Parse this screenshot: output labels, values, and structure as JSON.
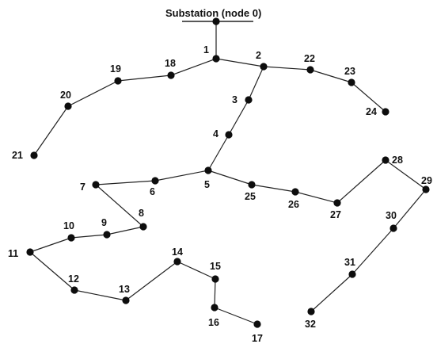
{
  "title": "Substation (node 0)",
  "colors": {
    "line": "#222222",
    "node": "#0d0d0d",
    "text": "#111111",
    "background": "#ffffff"
  },
  "nodes": [
    {
      "id": 0,
      "label": ""
    },
    {
      "id": 1,
      "label": "1"
    },
    {
      "id": 2,
      "label": "2"
    },
    {
      "id": 3,
      "label": "3"
    },
    {
      "id": 4,
      "label": "4"
    },
    {
      "id": 5,
      "label": "5"
    },
    {
      "id": 6,
      "label": "6"
    },
    {
      "id": 7,
      "label": "7"
    },
    {
      "id": 8,
      "label": "8"
    },
    {
      "id": 9,
      "label": "9"
    },
    {
      "id": 10,
      "label": "10"
    },
    {
      "id": 11,
      "label": "11"
    },
    {
      "id": 12,
      "label": "12"
    },
    {
      "id": 13,
      "label": "13"
    },
    {
      "id": 14,
      "label": "14"
    },
    {
      "id": 15,
      "label": "15"
    },
    {
      "id": 16,
      "label": "16"
    },
    {
      "id": 17,
      "label": "17"
    },
    {
      "id": 18,
      "label": "18"
    },
    {
      "id": 19,
      "label": "19"
    },
    {
      "id": 20,
      "label": "20"
    },
    {
      "id": 21,
      "label": "21"
    },
    {
      "id": 22,
      "label": "22"
    },
    {
      "id": 23,
      "label": "23"
    },
    {
      "id": 24,
      "label": "24"
    },
    {
      "id": 25,
      "label": "25"
    },
    {
      "id": 26,
      "label": "26"
    },
    {
      "id": 27,
      "label": "27"
    },
    {
      "id": 28,
      "label": "28"
    },
    {
      "id": 29,
      "label": "29"
    },
    {
      "id": 30,
      "label": "30"
    },
    {
      "id": 31,
      "label": "31"
    },
    {
      "id": 32,
      "label": "32"
    }
  ],
  "edges": [
    [
      0,
      1
    ],
    [
      1,
      2
    ],
    [
      2,
      3
    ],
    [
      3,
      4
    ],
    [
      4,
      5
    ],
    [
      5,
      6
    ],
    [
      6,
      7
    ],
    [
      7,
      8
    ],
    [
      8,
      9
    ],
    [
      9,
      10
    ],
    [
      10,
      11
    ],
    [
      11,
      12
    ],
    [
      12,
      13
    ],
    [
      13,
      14
    ],
    [
      14,
      15
    ],
    [
      15,
      16
    ],
    [
      16,
      17
    ],
    [
      1,
      18
    ],
    [
      18,
      19
    ],
    [
      19,
      20
    ],
    [
      20,
      21
    ],
    [
      2,
      22
    ],
    [
      22,
      23
    ],
    [
      23,
      24
    ],
    [
      5,
      25
    ],
    [
      25,
      26
    ],
    [
      26,
      27
    ],
    [
      27,
      28
    ],
    [
      28,
      29
    ],
    [
      29,
      30
    ],
    [
      30,
      31
    ],
    [
      31,
      32
    ]
  ]
}
